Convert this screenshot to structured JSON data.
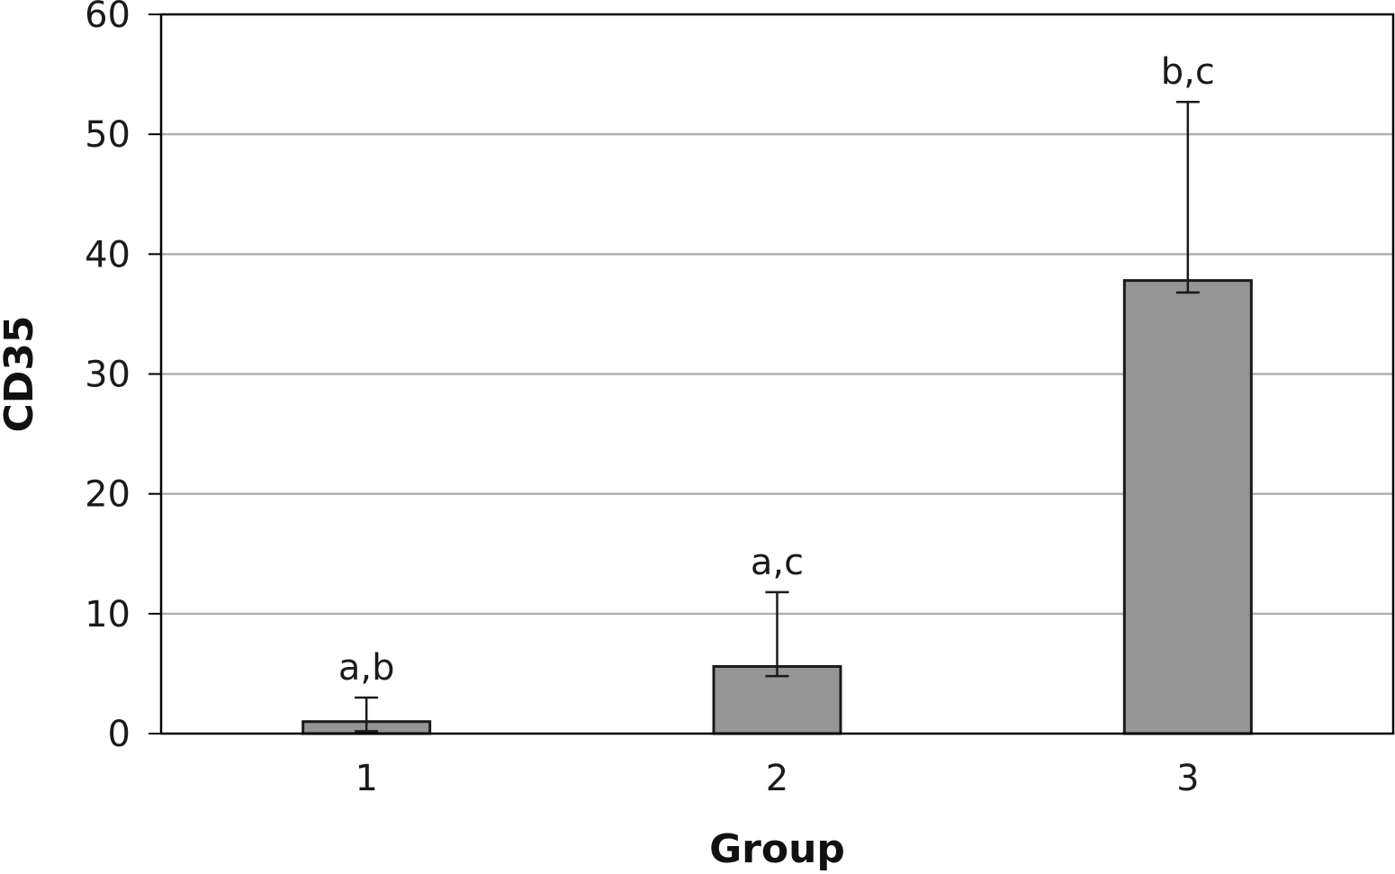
{
  "chart_data": {
    "type": "bar",
    "categories": [
      "1",
      "2",
      "3"
    ],
    "values": [
      1.0,
      5.6,
      37.8
    ],
    "error_upper": [
      3.0,
      11.8,
      52.7
    ],
    "error_lower": [
      0.2,
      4.8,
      36.8
    ],
    "annotations": [
      "a,b",
      "a,c",
      "b,c"
    ],
    "xlabel": "Group",
    "ylabel": "CD35",
    "ylim": [
      0,
      60
    ],
    "yticks": [
      0,
      10,
      20,
      30,
      40,
      50,
      60
    ],
    "grid": "horizontal",
    "legend": "none",
    "colors": {
      "bar_fill": "#959595",
      "bar_stroke": "#1a1a1a",
      "grid": "#b0b0b0",
      "axis": "#000000"
    }
  }
}
